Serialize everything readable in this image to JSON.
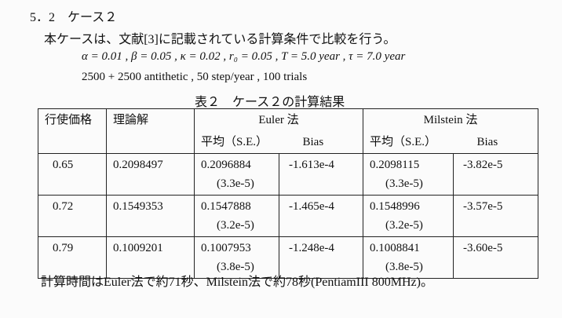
{
  "section": {
    "heading": "5．2　ケース２",
    "intro": "本ケースは、文献[3]に記載されている計算条件で比較を行う。",
    "params": "α = 0.01 , β = 0.05 , κ = 0.02 , r₀ = 0.05 , T = 5.0 year , τ = 7.0 year",
    "settings": "2500 + 2500 antithetic , 50 step/year , 100 trials"
  },
  "table": {
    "caption": "表２　ケース２の計算結果",
    "headers": [
      "行使価格",
      "理論解",
      "Euler 法",
      "Milstein 法"
    ],
    "subheaders": [
      "平均（S.E.）",
      "Bias",
      "平均（S.E.）",
      "Bias"
    ],
    "rows": [
      [
        "0.65",
        "0.2098497",
        "0.2096884",
        "(3.3e-5)",
        "-1.613e-4",
        "0.2098115",
        "(3.3e-5)",
        "-3.82e-5"
      ],
      [
        "0.72",
        "0.1549353",
        "0.1547888",
        "(3.2e-5)",
        "-1.465e-4",
        "0.1548996",
        "(3.2e-5)",
        "-3.57e-5"
      ],
      [
        "0.79",
        "0.1009201",
        "0.1007953",
        "(3.8e-5)",
        "-1.248e-4",
        "0.1008841",
        "(3.8e-5)",
        "-3.60e-5"
      ]
    ]
  },
  "footer": "計算時間はEuler法で約71秒、Milstein法で約78秒(PentiamIII 800MHz)。"
}
